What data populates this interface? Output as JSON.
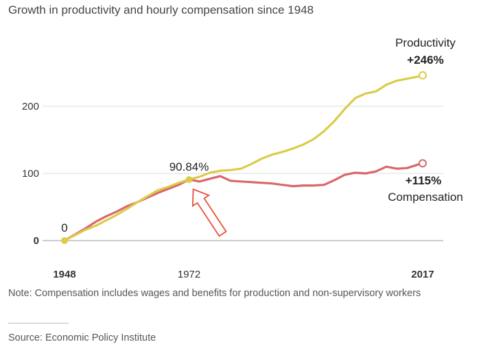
{
  "title": "Growth in productivity and hourly compensation since 1948",
  "note": "Note: Compensation includes wages and benefits for production and non-supervisory workers",
  "source": "Source: Economic Policy Institute",
  "colors": {
    "productivity": "#dccb4a",
    "compensation": "#d9666a",
    "arrow": "#e8503a",
    "grid": "#dddddd"
  },
  "chart_data": {
    "type": "line",
    "title": "Growth in productivity and hourly compensation since 1948",
    "xlim": [
      1948,
      2017
    ],
    "ylim": [
      0,
      250
    ],
    "x_ticks": [
      {
        "value": 1948,
        "label": "1948",
        "bold": true
      },
      {
        "value": 1972,
        "label": "1972",
        "bold": false
      },
      {
        "value": 2017,
        "label": "2017",
        "bold": true
      }
    ],
    "y_ticks": [
      {
        "value": 0,
        "label": "0",
        "bold": true
      },
      {
        "value": 100,
        "label": "100",
        "bold": false
      },
      {
        "value": 200,
        "label": "200",
        "bold": false
      }
    ],
    "grid": true,
    "series": [
      {
        "name": "Productivity",
        "end_label": "+246%",
        "x": [
          1948,
          1950,
          1952,
          1954,
          1956,
          1958,
          1960,
          1962,
          1964,
          1966,
          1968,
          1970,
          1972,
          1974,
          1976,
          1978,
          1980,
          1982,
          1984,
          1986,
          1988,
          1990,
          1992,
          1994,
          1996,
          1998,
          2000,
          2002,
          2004,
          2006,
          2008,
          2010,
          2012,
          2014,
          2016,
          2017
        ],
        "values": [
          0,
          8,
          16,
          22,
          30,
          38,
          47,
          57,
          66,
          75,
          80,
          86,
          91,
          95,
          101,
          104,
          105,
          107,
          114,
          122,
          128,
          132,
          137,
          143,
          151,
          163,
          178,
          196,
          212,
          219,
          222,
          232,
          238,
          241,
          244,
          246
        ]
      },
      {
        "name": "Compensation",
        "end_label": "+115%",
        "x": [
          1948,
          1950,
          1952,
          1954,
          1956,
          1958,
          1960,
          1962,
          1964,
          1966,
          1968,
          1970,
          1972,
          1974,
          1976,
          1978,
          1980,
          1982,
          1984,
          1986,
          1988,
          1990,
          1992,
          1994,
          1996,
          1998,
          2000,
          2002,
          2004,
          2006,
          2008,
          2010,
          2012,
          2014,
          2016,
          2017
        ],
        "values": [
          0,
          9,
          18,
          28,
          36,
          43,
          51,
          57,
          64,
          71,
          77,
          83,
          91,
          88,
          92,
          96,
          89,
          88,
          87,
          86,
          85,
          83,
          81,
          82,
          82,
          83,
          90,
          98,
          101,
          100,
          103,
          110,
          107,
          108,
          113,
          115
        ]
      }
    ],
    "annotations": [
      {
        "x": 1948,
        "y": 0,
        "text": "0"
      },
      {
        "x": 1972,
        "y": 90.84,
        "text": "90.84%"
      }
    ]
  }
}
